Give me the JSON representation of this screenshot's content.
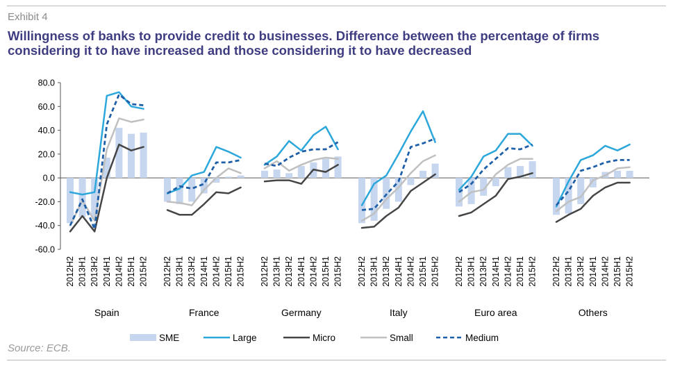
{
  "header": {
    "exhibit": "Exhibit 4",
    "title": "Willingness of banks to provide credit to businesses. Difference between the percentage of firms considering it to have increased and those considering it to have decreased"
  },
  "footer": {
    "source": "Source: ECB."
  },
  "colors": {
    "SME": "#c6d6ef",
    "Large": "#2ba7db",
    "Micro": "#454545",
    "Small": "#c0c0c0",
    "Medium": "#1f5fa8"
  },
  "chart_data": {
    "type": "bar",
    "ylim": [
      -60,
      80
    ],
    "yticks": [
      "80.0",
      "60.0",
      "40.0",
      "20.0",
      "0.0",
      "-20.0",
      "-40.0",
      "-60.0"
    ],
    "ytick_values": [
      80,
      60,
      40,
      20,
      0,
      -20,
      -40,
      -60
    ],
    "periods": [
      "2012H2",
      "2013H1",
      "2013H2",
      "2014H1",
      "2014H2",
      "2015H1",
      "2015H2"
    ],
    "groups": [
      "Spain",
      "France",
      "Germany",
      "Italy",
      "Euro area",
      "Others"
    ],
    "legend": [
      "SME",
      "Large",
      "Micro",
      "Small",
      "Medium"
    ],
    "series": [
      {
        "name": "SME",
        "kind": "bar",
        "values": [
          [
            -38,
            -33,
            -35,
            17,
            42,
            37,
            38
          ],
          [
            -20,
            -22,
            -20,
            -13,
            -4,
            1,
            2
          ],
          [
            6,
            7,
            4,
            10,
            13,
            16,
            18
          ],
          [
            -38,
            -36,
            -26,
            -20,
            -6,
            6,
            12
          ],
          [
            -24,
            -22,
            -15,
            -7,
            9,
            10,
            14
          ],
          [
            -31,
            -30,
            -22,
            -8,
            5,
            6,
            6
          ]
        ]
      },
      {
        "name": "Large",
        "kind": "line",
        "values": [
          [
            -12,
            -14,
            -12,
            69,
            72,
            60,
            58
          ],
          [
            -13,
            -9,
            2,
            5,
            26,
            22,
            17
          ],
          [
            11,
            18,
            31,
            23,
            36,
            43,
            24
          ],
          [
            -23,
            -5,
            2,
            20,
            39,
            56,
            30
          ],
          [
            -10,
            1,
            18,
            23,
            37,
            37,
            27
          ],
          [
            -24,
            -3,
            15,
            19,
            27,
            23,
            28
          ]
        ]
      },
      {
        "name": "Micro",
        "kind": "line",
        "values": [
          [
            -45,
            -32,
            -45,
            0,
            28,
            23,
            26
          ],
          [
            -27,
            -31,
            -31,
            -22,
            -12,
            -13,
            -8
          ],
          [
            -3,
            -2,
            -2,
            -5,
            7,
            5,
            11
          ],
          [
            -42,
            -41,
            -32,
            -25,
            -11,
            -4,
            3
          ],
          [
            -32,
            -29,
            -22,
            -15,
            -1,
            1,
            4
          ],
          [
            -37,
            -31,
            -26,
            -15,
            -8,
            -4,
            -4
          ]
        ]
      },
      {
        "name": "Small",
        "kind": "line",
        "values": [
          [
            -40,
            -19,
            -36,
            24,
            50,
            47,
            49
          ],
          [
            -20,
            -21,
            -23,
            -10,
            0,
            8,
            4
          ],
          [
            8,
            14,
            6,
            11,
            15,
            17,
            16
          ],
          [
            -36,
            -30,
            -18,
            -8,
            4,
            14,
            19
          ],
          [
            -20,
            -12,
            -10,
            3,
            11,
            16,
            16
          ],
          [
            -28,
            -20,
            -16,
            -2,
            2,
            8,
            9
          ]
        ]
      },
      {
        "name": "Medium",
        "kind": "dashed",
        "values": [
          [
            -40,
            -18,
            -43,
            45,
            70,
            62,
            61
          ],
          [
            -13,
            -7,
            -9,
            -5,
            13,
            13,
            15
          ],
          [
            12,
            10,
            17,
            22,
            24,
            24,
            30
          ],
          [
            -27,
            -26,
            -14,
            -3,
            26,
            29,
            33
          ],
          [
            -12,
            -5,
            7,
            16,
            25,
            24,
            28
          ],
          [
            -23,
            -11,
            6,
            9,
            13,
            15,
            15
          ]
        ]
      }
    ]
  }
}
